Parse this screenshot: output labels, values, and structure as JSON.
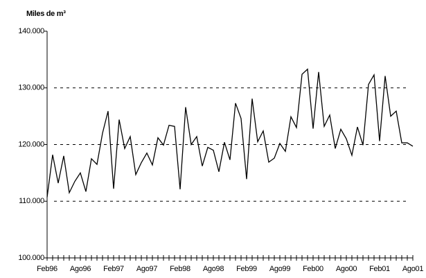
{
  "chart_data": {
    "type": "line",
    "ylabel": "Miles de m³",
    "categories": [
      "Feb96",
      null,
      null,
      null,
      null,
      null,
      "Ago96",
      null,
      null,
      null,
      null,
      null,
      "Feb97",
      null,
      null,
      null,
      null,
      null,
      "Ago97",
      null,
      null,
      null,
      null,
      null,
      "Feb98",
      null,
      null,
      null,
      null,
      null,
      "Ago98",
      null,
      null,
      null,
      null,
      null,
      "Feb99",
      null,
      null,
      null,
      null,
      null,
      "Ago99",
      null,
      null,
      null,
      null,
      null,
      "Feb00",
      null,
      null,
      null,
      null,
      null,
      "Ago00",
      null,
      null,
      null,
      null,
      null,
      "Feb01",
      null,
      null,
      null,
      null,
      null,
      "Ago01"
    ],
    "series": [
      {
        "color": "#000000",
        "values": [
          110700,
          118200,
          113200,
          118000,
          111500,
          113500,
          115000,
          111700,
          117500,
          116500,
          122000,
          125900,
          112200,
          124400,
          119300,
          121400,
          114700,
          116800,
          118500,
          116400,
          121200,
          119900,
          123400,
          123200,
          112100,
          126600,
          120000,
          121400,
          116200,
          119500,
          119000,
          115200,
          120400,
          117300,
          127300,
          124600,
          113900,
          128100,
          120500,
          122400,
          116900,
          117600,
          120200,
          118800,
          124900,
          123000,
          132400,
          133300,
          122800,
          132800,
          123200,
          125200,
          119300,
          122700,
          121000,
          118100,
          123100,
          119900,
          130600,
          132300,
          120600,
          132100,
          125000,
          125900,
          120300,
          120300,
          119700
        ]
      }
    ],
    "ylim": [
      100000,
      140000
    ],
    "yticks": [
      {
        "value": 100000,
        "label": "100.000"
      },
      {
        "value": 110000,
        "label": "110.000"
      },
      {
        "value": 120000,
        "label": "120.000"
      },
      {
        "value": 130000,
        "label": "130.000"
      },
      {
        "value": 140000,
        "label": "140.000"
      }
    ],
    "grid": true
  }
}
